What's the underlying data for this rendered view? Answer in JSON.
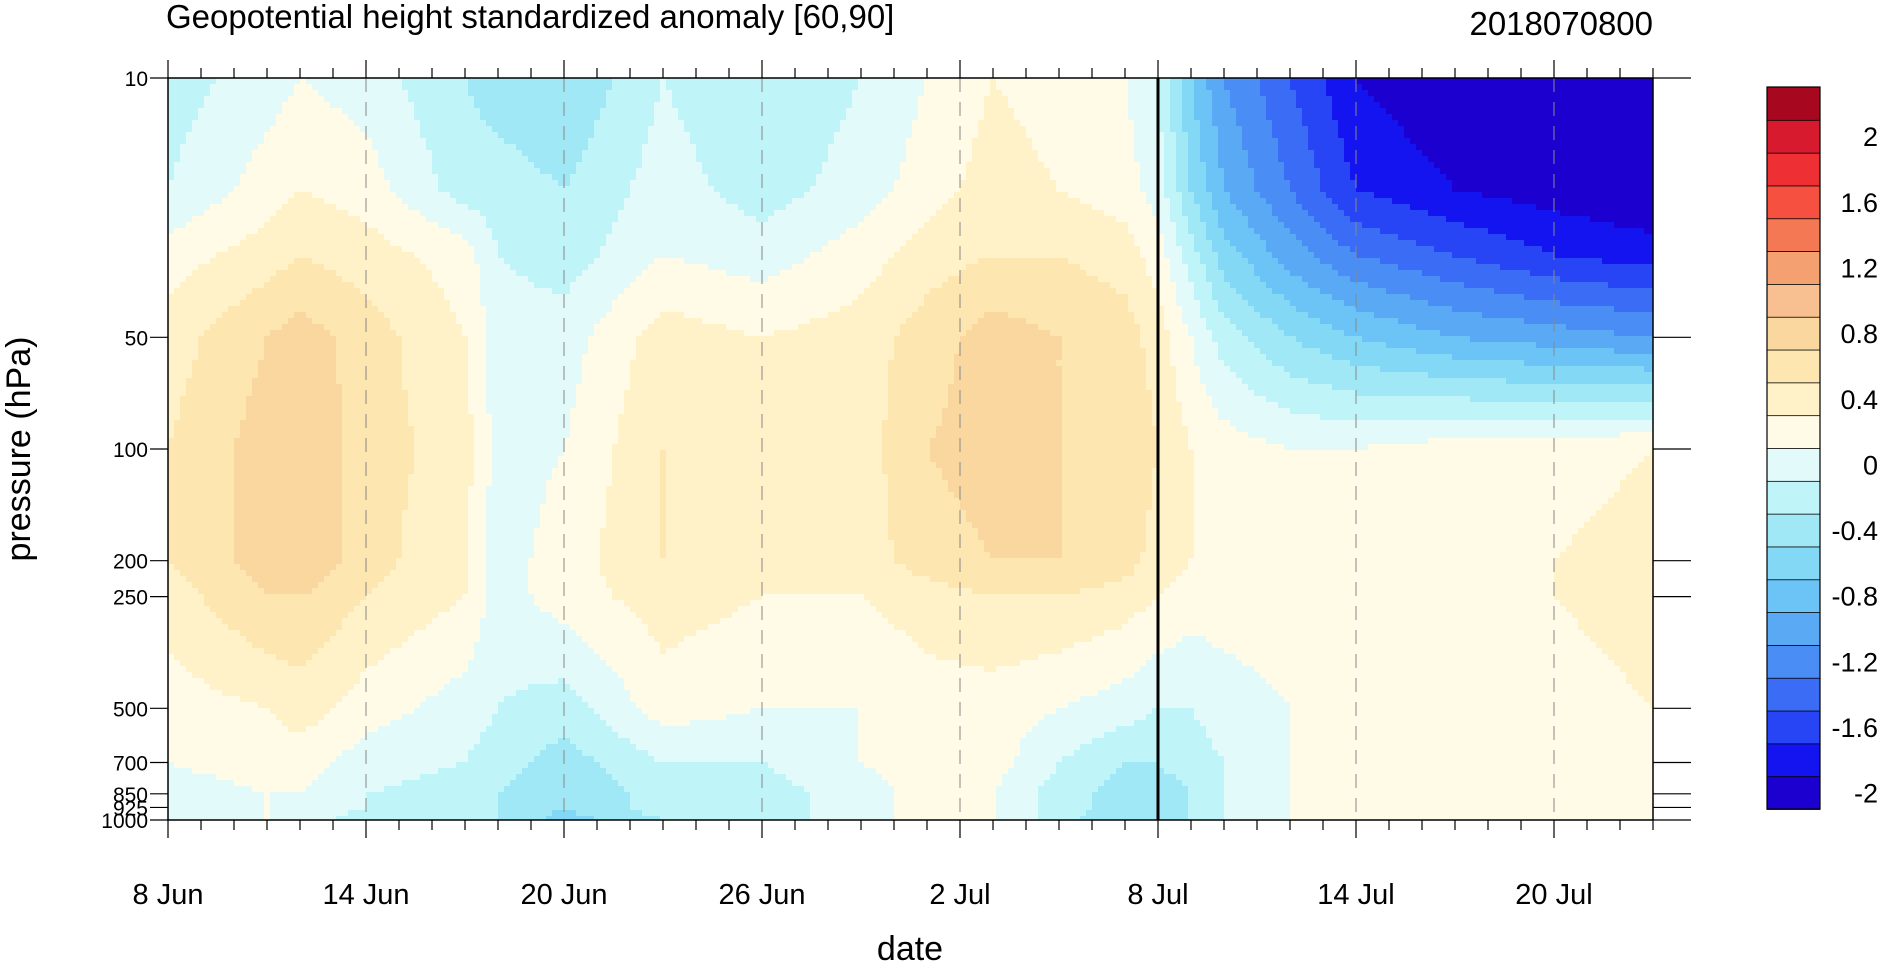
{
  "chart_data": {
    "type": "heatmap",
    "title": "Geopotential height standardized anomaly [60,90]",
    "date_label": "2018070800",
    "xlabel": "date",
    "ylabel": "pressure (hPa)",
    "x_tick_labels": [
      "8 Jun",
      "14 Jun",
      "20 Jun",
      "26 Jun",
      "2 Jul",
      "8 Jul",
      "14 Jul",
      "20 Jul"
    ],
    "x_range": [
      "8 Jun",
      "23 Jul"
    ],
    "y_scale": "log-pressure (inverted)",
    "y_tick_labels": [
      "10",
      "50",
      "100",
      "200",
      "250",
      "500",
      "700",
      "850",
      "925",
      "1000"
    ],
    "y_ticks": [
      10,
      50,
      100,
      200,
      250,
      500,
      700,
      850,
      925,
      1000
    ],
    "y_range": [
      1000,
      10
    ],
    "vertical_marker": "8 Jul",
    "colorbar": {
      "levels": [
        -2.2,
        -2.0,
        -1.8,
        -1.6,
        -1.4,
        -1.2,
        -1.0,
        -0.8,
        -0.6,
        -0.4,
        -0.2,
        0,
        0.2,
        0.4,
        0.6,
        0.8,
        1.0,
        1.2,
        1.4,
        1.6,
        1.8,
        2.0,
        2.2
      ],
      "colors": [
        "#1b00d0",
        "#1414f0",
        "#2845f5",
        "#3a6cf5",
        "#4a8ef5",
        "#5aa9f5",
        "#6cc3f5",
        "#82d8f5",
        "#a0e8f5",
        "#bff4f8",
        "#e2fafa",
        "#fffbe6",
        "#fff2c8",
        "#fde6b0",
        "#fbd7a0",
        "#f8c090",
        "#f5a070",
        "#f57855",
        "#f55040",
        "#ee3035",
        "#d81a2e",
        "#a8081f"
      ],
      "tick_labels": [
        "2",
        "1.6",
        "1.2",
        "0.8",
        "0.4",
        "0",
        "-0.4",
        "-0.8",
        "-1.2",
        "-1.6",
        "-2"
      ]
    },
    "field": {
      "x_nodes": [
        "8 Jun",
        "11 Jun",
        "12 Jun",
        "14 Jun",
        "17 Jun",
        "18 Jun",
        "20 Jun",
        "23 Jun",
        "26 Jun",
        "29 Jun",
        "1 Jul",
        "3 Jul",
        "5 Jul",
        "7 Jul",
        "8 Jul",
        "9 Jul",
        "10 Jul",
        "12 Jul",
        "14 Jul",
        "17 Jul",
        "20 Jul",
        "23 Jul"
      ],
      "y_nodes": [
        10,
        20,
        30,
        50,
        100,
        200,
        250,
        500,
        700,
        850,
        925,
        1000
      ],
      "values": [
        [
          -0.3,
          -0.1,
          0.0,
          -0.1,
          -0.4,
          -0.5,
          -0.6,
          -0.2,
          -0.4,
          -0.2,
          0.0,
          0.2,
          0.1,
          0.0,
          -0.2,
          -0.8,
          -1.2,
          -1.6,
          -2.0,
          -2.2,
          -2.2,
          -2.2
        ],
        [
          -0.2,
          0.1,
          0.2,
          0.1,
          -0.3,
          -0.3,
          -0.4,
          -0.1,
          -0.3,
          -0.1,
          0.1,
          0.3,
          0.2,
          0.1,
          -0.1,
          -0.6,
          -1.0,
          -1.4,
          -1.8,
          -2.0,
          -2.1,
          -2.2
        ],
        [
          0.1,
          0.3,
          0.4,
          0.3,
          0.1,
          -0.2,
          -0.3,
          0.0,
          -0.1,
          0.1,
          0.3,
          0.4,
          0.4,
          0.3,
          0.1,
          -0.3,
          -0.7,
          -1.1,
          -1.4,
          -1.6,
          -1.8,
          -1.9
        ],
        [
          0.3,
          0.6,
          0.7,
          0.5,
          0.2,
          -0.1,
          -0.1,
          0.3,
          0.2,
          0.3,
          0.5,
          0.7,
          0.6,
          0.5,
          0.3,
          0.0,
          -0.3,
          -0.6,
          -0.8,
          -1.0,
          -1.1,
          -1.2
        ],
        [
          0.4,
          0.7,
          0.8,
          0.5,
          0.3,
          -0.1,
          0.0,
          0.4,
          0.3,
          0.3,
          0.6,
          0.7,
          0.6,
          0.6,
          0.4,
          0.2,
          0.1,
          0.0,
          0.0,
          0.1,
          0.1,
          0.2
        ],
        [
          0.4,
          0.7,
          0.8,
          0.5,
          0.2,
          -0.1,
          0.1,
          0.4,
          0.3,
          0.3,
          0.5,
          0.6,
          0.6,
          0.5,
          0.3,
          0.2,
          0.2,
          0.1,
          0.1,
          0.2,
          0.2,
          0.3
        ],
        [
          0.3,
          0.6,
          0.6,
          0.4,
          0.2,
          -0.1,
          0.1,
          0.3,
          0.2,
          0.2,
          0.3,
          0.4,
          0.4,
          0.3,
          0.2,
          0.1,
          0.1,
          0.1,
          0.1,
          0.1,
          0.2,
          0.3
        ],
        [
          0.1,
          0.2,
          0.3,
          0.1,
          -0.1,
          -0.2,
          -0.3,
          0.1,
          0.0,
          0.0,
          0.1,
          0.1,
          0.0,
          -0.1,
          -0.2,
          -0.2,
          -0.1,
          0.0,
          0.0,
          0.1,
          0.1,
          0.2
        ],
        [
          0.0,
          0.1,
          0.1,
          -0.1,
          -0.2,
          -0.3,
          -0.5,
          -0.2,
          -0.2,
          0.0,
          0.1,
          0.1,
          -0.2,
          -0.4,
          -0.4,
          -0.3,
          -0.2,
          0.0,
          0.0,
          0.0,
          0.0,
          0.1
        ],
        [
          -0.1,
          0.0,
          0.0,
          -0.2,
          -0.3,
          -0.4,
          -0.6,
          -0.3,
          -0.3,
          -0.1,
          0.1,
          0.0,
          -0.3,
          -0.5,
          -0.5,
          -0.4,
          -0.2,
          0.0,
          0.0,
          0.0,
          0.0,
          0.0
        ],
        [
          -0.1,
          0.0,
          -0.1,
          -0.2,
          -0.3,
          -0.4,
          -0.6,
          -0.3,
          -0.3,
          -0.1,
          0.1,
          0.0,
          -0.3,
          -0.5,
          -0.6,
          -0.4,
          -0.2,
          0.0,
          0.0,
          0.0,
          0.0,
          0.0
        ],
        [
          -0.1,
          0.0,
          -0.1,
          -0.3,
          -0.3,
          -0.4,
          -0.7,
          -0.4,
          -0.3,
          -0.1,
          0.1,
          0.0,
          -0.3,
          -0.6,
          -0.6,
          -0.4,
          -0.2,
          0.0,
          0.0,
          0.0,
          0.0,
          0.0
        ]
      ]
    }
  }
}
